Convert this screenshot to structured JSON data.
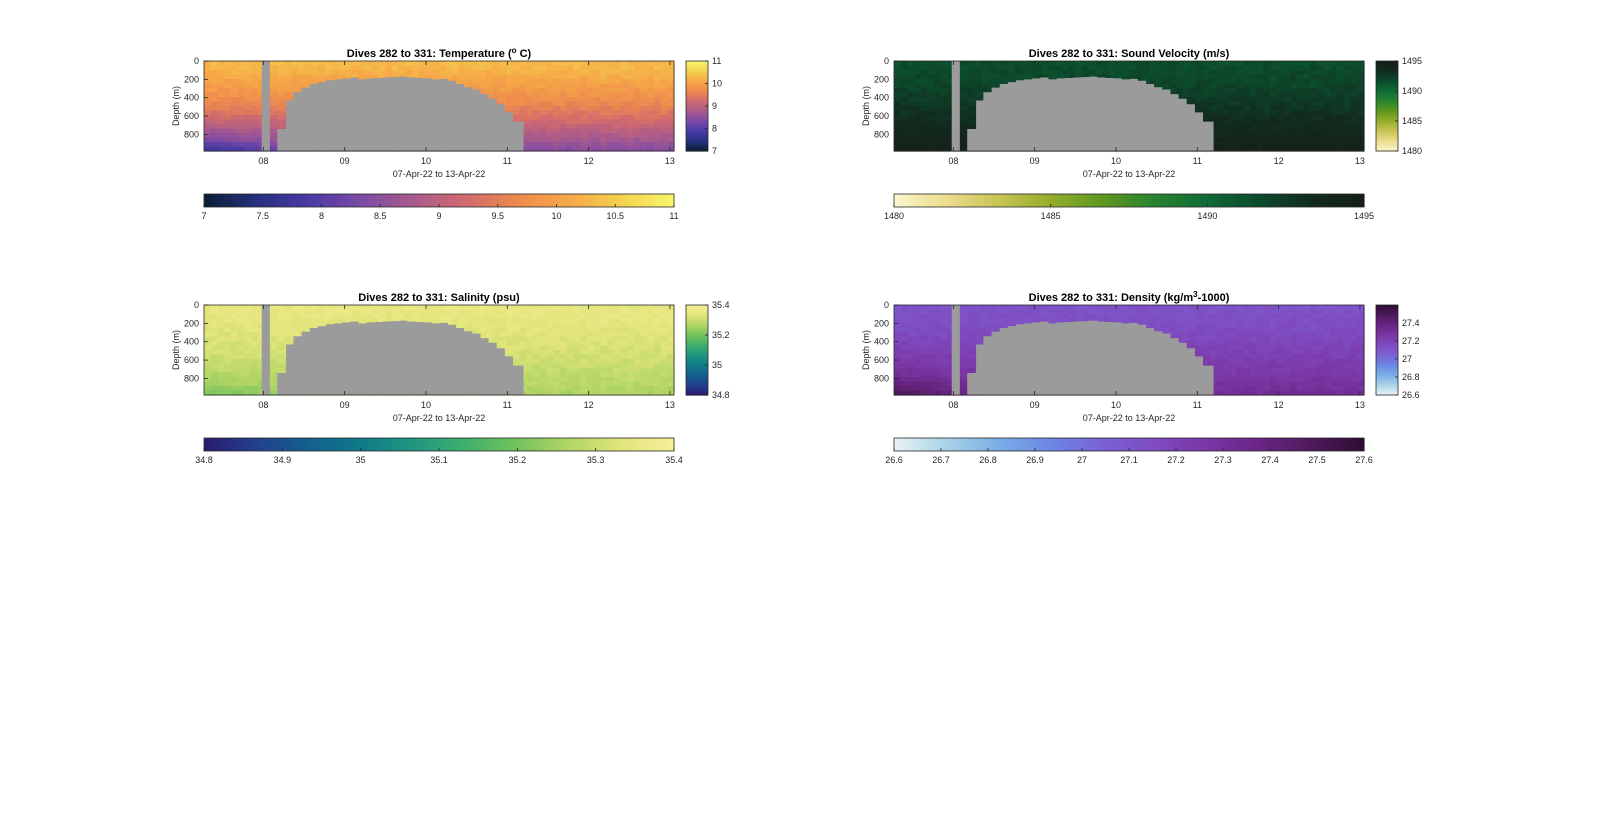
{
  "colors": {
    "gap": "#9b9b9b",
    "axis": "#262626",
    "temperature_map": [
      "#0b1d33",
      "#26307f",
      "#4a3aa6",
      "#7b4aa6",
      "#a95a8c",
      "#d06a6e",
      "#ee8a4e",
      "#f6a847",
      "#f4d24e",
      "#f7f76a"
    ],
    "sound_velocity_map": [
      "#fbf6cc",
      "#ecdc8e",
      "#c8c455",
      "#94ad2a",
      "#5e9720",
      "#27832e",
      "#0f6b37",
      "#0c4a2c",
      "#122a1e",
      "#161f17"
    ],
    "salinity_map": [
      "#2a1a6e",
      "#23408f",
      "#135f8c",
      "#107a8a",
      "#1f9680",
      "#3eb06b",
      "#74c25c",
      "#b3d566",
      "#e2e57a",
      "#f6ef9a"
    ],
    "density_map": [
      "#e8f3f3",
      "#a9d3e7",
      "#7aaee6",
      "#6d86e4",
      "#7a62d4",
      "#7f4bc0",
      "#7a36a4",
      "#6a2584",
      "#4e1a5c",
      "#2e0c32"
    ]
  },
  "chart_data": [
    {
      "type": "heatmap",
      "title": "Dives 282 to 331: Temperature (",
      "title_sup": "o",
      "title_end": " C)",
      "xlabel": "07-Apr-22 to 13-Apr-22",
      "ylabel": "Depth (m)",
      "x_ticks": [
        "08",
        "09",
        "10",
        "11",
        "12",
        "13"
      ],
      "x_tick_values": [
        8,
        9,
        10,
        11,
        12,
        13
      ],
      "xlim": [
        7.27,
        13.05
      ],
      "y_ticks": [
        "0",
        "200",
        "400",
        "600",
        "800"
      ],
      "y_tick_values": [
        0,
        200,
        400,
        600,
        800
      ],
      "ylim": [
        0,
        980
      ],
      "colormap": "temperature_map",
      "clim": [
        7,
        11
      ],
      "side_colorbar_ticks": [
        "7",
        "8",
        "9",
        "10",
        "11"
      ],
      "side_colorbar_values": [
        7,
        8,
        9,
        10,
        11
      ],
      "bottom_colorbar_ticks": [
        "7",
        "7.5",
        "8",
        "8.5",
        "9",
        "9.5",
        "10",
        "10.5",
        "11"
      ],
      "bottom_colorbar_values": [
        7,
        7.5,
        8,
        8.5,
        9,
        9.5,
        10,
        10.5,
        11
      ],
      "surface_value": 10.3,
      "deep_value": 8.4,
      "deep_value_left": 7.6,
      "gap_profile_day": [
        8.17,
        8.28,
        8.37,
        8.47,
        8.57,
        8.67,
        8.77,
        8.87,
        8.97,
        9.07,
        9.17,
        9.27,
        9.37,
        9.47,
        9.57,
        9.67,
        9.77,
        9.87,
        9.97,
        10.07,
        10.17,
        10.27,
        10.37,
        10.47,
        10.57,
        10.67,
        10.77,
        10.87,
        10.97,
        11.07,
        11.2
      ],
      "gap_profile_top": [
        740,
        430,
        340,
        290,
        250,
        230,
        210,
        200,
        190,
        180,
        200,
        190,
        185,
        180,
        175,
        170,
        180,
        185,
        190,
        200,
        195,
        215,
        250,
        285,
        310,
        360,
        410,
        470,
        560,
        660,
        980
      ],
      "missing_columns_day": [
        [
          7.98,
          8.08
        ]
      ]
    },
    {
      "type": "heatmap",
      "title": "Dives 282 to 331: Sound Velocity (m/s)",
      "xlabel": "07-Apr-22 to 13-Apr-22",
      "ylabel": "Depth (m)",
      "x_ticks": [
        "08",
        "09",
        "10",
        "11",
        "12",
        "13"
      ],
      "x_tick_values": [
        8,
        9,
        10,
        11,
        12,
        13
      ],
      "xlim": [
        7.27,
        13.05
      ],
      "y_ticks": [
        "0",
        "200",
        "400",
        "600",
        "800"
      ],
      "y_tick_values": [
        0,
        200,
        400,
        600,
        800
      ],
      "ylim": [
        0,
        980
      ],
      "colormap": "sound_velocity_map",
      "clim": [
        1480,
        1495
      ],
      "side_colorbar_ticks": [
        "1480",
        "1485",
        "1490",
        "1495"
      ],
      "side_colorbar_values": [
        1480,
        1485,
        1490,
        1495
      ],
      "bottom_colorbar_ticks": [
        "1480",
        "1485",
        "1490",
        "1495"
      ],
      "bottom_colorbar_values": [
        1480,
        1485,
        1490,
        1495
      ],
      "surface_value": 1491.5,
      "deep_value": 1494.6,
      "deep_value_left": 1494.8,
      "gap_profile_day": [
        8.17,
        8.28,
        8.37,
        8.47,
        8.57,
        8.67,
        8.77,
        8.87,
        8.97,
        9.07,
        9.17,
        9.27,
        9.37,
        9.47,
        9.57,
        9.67,
        9.77,
        9.87,
        9.97,
        10.07,
        10.17,
        10.27,
        10.37,
        10.47,
        10.57,
        10.67,
        10.77,
        10.87,
        10.97,
        11.07,
        11.2
      ],
      "gap_profile_top": [
        740,
        430,
        340,
        290,
        250,
        230,
        210,
        200,
        190,
        180,
        200,
        190,
        185,
        180,
        175,
        170,
        180,
        185,
        190,
        200,
        195,
        215,
        250,
        285,
        310,
        360,
        410,
        470,
        560,
        660,
        980
      ],
      "missing_columns_day": [
        [
          7.98,
          8.08
        ]
      ]
    },
    {
      "type": "heatmap",
      "title": "Dives 282 to 331: Salinity (psu)",
      "xlabel": "07-Apr-22 to 13-Apr-22",
      "ylabel": "Depth (m)",
      "x_ticks": [
        "08",
        "09",
        "10",
        "11",
        "12",
        "13"
      ],
      "x_tick_values": [
        8,
        9,
        10,
        11,
        12,
        13
      ],
      "xlim": [
        7.27,
        13.05
      ],
      "y_ticks": [
        "0",
        "200",
        "400",
        "600",
        "800"
      ],
      "y_tick_values": [
        0,
        200,
        400,
        600,
        800
      ],
      "ylim": [
        0,
        980
      ],
      "colormap": "salinity_map",
      "clim": [
        34.8,
        35.4
      ],
      "side_colorbar_ticks": [
        "34.8",
        "35",
        "35.2",
        "35.4"
      ],
      "side_colorbar_values": [
        34.8,
        35,
        35.2,
        35.4
      ],
      "bottom_colorbar_ticks": [
        "34.8",
        "34.9",
        "35",
        "35.1",
        "35.2",
        "35.3",
        "35.4"
      ],
      "bottom_colorbar_values": [
        34.8,
        34.9,
        35,
        35.1,
        35.2,
        35.3,
        35.4
      ],
      "surface_value": 35.35,
      "deep_value": 35.26,
      "deep_value_left": 35.2,
      "gap_profile_day": [
        8.17,
        8.28,
        8.37,
        8.47,
        8.57,
        8.67,
        8.77,
        8.87,
        8.97,
        9.07,
        9.17,
        9.27,
        9.37,
        9.47,
        9.57,
        9.67,
        9.77,
        9.87,
        9.97,
        10.07,
        10.17,
        10.27,
        10.37,
        10.47,
        10.57,
        10.67,
        10.77,
        10.87,
        10.97,
        11.07,
        11.2
      ],
      "gap_profile_top": [
        740,
        430,
        340,
        290,
        250,
        230,
        210,
        200,
        190,
        180,
        200,
        190,
        185,
        180,
        175,
        170,
        180,
        185,
        190,
        200,
        195,
        215,
        250,
        285,
        310,
        360,
        410,
        470,
        560,
        660,
        980
      ],
      "missing_columns_day": [
        [
          7.98,
          8.08
        ]
      ]
    },
    {
      "type": "heatmap",
      "title": "Dives 282 to 331: Density (kg/m",
      "title_sup": "3",
      "title_end": "-1000)",
      "xlabel": "07-Apr-22 to 13-Apr-22",
      "ylabel": "Depth (m)",
      "x_ticks": [
        "08",
        "09",
        "10",
        "11",
        "12",
        "13"
      ],
      "x_tick_values": [
        8,
        9,
        10,
        11,
        12,
        13
      ],
      "xlim": [
        7.27,
        13.05
      ],
      "y_ticks": [
        "0",
        "200",
        "400",
        "600",
        "800"
      ],
      "y_tick_values": [
        0,
        200,
        400,
        600,
        800
      ],
      "ylim": [
        0,
        980
      ],
      "colormap": "density_map",
      "clim": [
        26.6,
        27.6
      ],
      "side_colorbar_ticks": [
        "26.6",
        "26.8",
        "27",
        "27.2",
        "27.4"
      ],
      "side_colorbar_values": [
        26.6,
        26.8,
        27,
        27.2,
        27.4
      ],
      "bottom_colorbar_ticks": [
        "26.6",
        "26.7",
        "26.8",
        "26.9",
        "27",
        "27.1",
        "27.2",
        "27.3",
        "27.4",
        "27.5",
        "27.6"
      ],
      "bottom_colorbar_values": [
        26.6,
        26.7,
        26.8,
        26.9,
        27,
        27.1,
        27.2,
        27.3,
        27.4,
        27.5,
        27.6
      ],
      "surface_value": 27.12,
      "deep_value": 27.32,
      "deep_value_left": 27.5,
      "gap_profile_day": [
        8.17,
        8.28,
        8.37,
        8.47,
        8.57,
        8.67,
        8.77,
        8.87,
        8.97,
        9.07,
        9.17,
        9.27,
        9.37,
        9.47,
        9.57,
        9.67,
        9.77,
        9.87,
        9.97,
        10.07,
        10.17,
        10.27,
        10.37,
        10.47,
        10.57,
        10.67,
        10.77,
        10.87,
        10.97,
        11.07,
        11.2
      ],
      "gap_profile_top": [
        740,
        430,
        340,
        290,
        250,
        230,
        210,
        200,
        190,
        180,
        200,
        190,
        185,
        180,
        175,
        170,
        180,
        185,
        190,
        200,
        195,
        215,
        250,
        285,
        310,
        360,
        410,
        470,
        560,
        660,
        980
      ],
      "missing_columns_day": [
        [
          7.98,
          8.08
        ]
      ]
    }
  ]
}
